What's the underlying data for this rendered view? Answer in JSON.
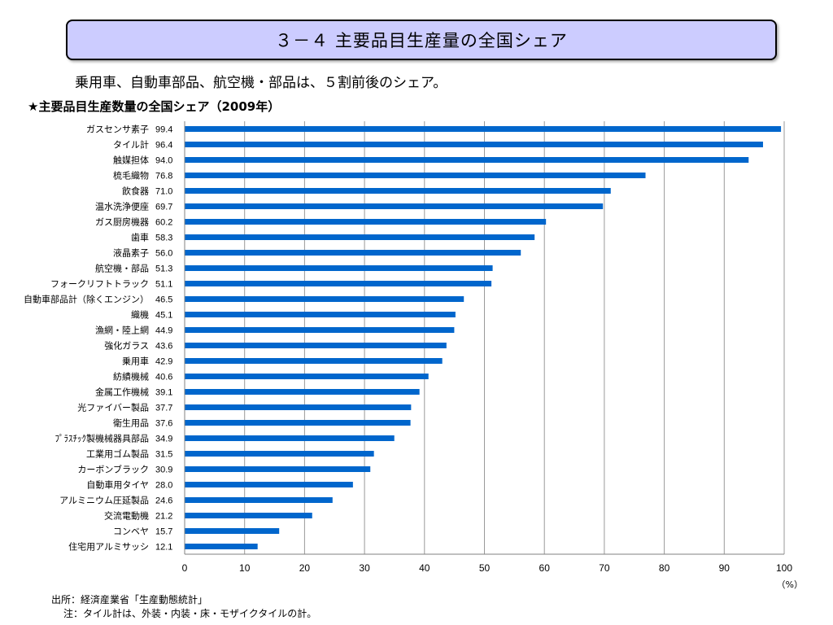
{
  "header": {
    "title": "３－４ 主要品目生産量の全国シェア"
  },
  "subtitle": "乗用車、自動車部品、航空機・部品は、５割前後のシェア。",
  "chart_data": {
    "type": "bar",
    "orientation": "horizontal",
    "title": "★主要品目生産数量の全国シェア（2009年）",
    "categories": [
      "ガスセンサ素子",
      "タイル計",
      "触媒担体",
      "梳毛織物",
      "飲食器",
      "温水洗浄便座",
      "ガス厨房機器",
      "歯車",
      "液晶素子",
      "航空機・部品",
      "フォークリフトトラック",
      "自動車部品計（除くエンジン）",
      "織機",
      "漁網・陸上網",
      "強化ガラス",
      "乗用車",
      "紡績機械",
      "金属工作機械",
      "光ファイバー製品",
      "衛生用品",
      "ﾌﾟﾗｽﾁｯｸ製機械器具部品",
      "工業用ゴム製品",
      "カーボンブラック",
      "自動車用タイヤ",
      "アルミニウム圧延製品",
      "交流電動機",
      "コンベヤ",
      "住宅用アルミサッシ"
    ],
    "values": [
      99.4,
      96.4,
      94.0,
      76.8,
      71.0,
      69.7,
      60.2,
      58.3,
      56.0,
      51.3,
      51.1,
      46.5,
      45.1,
      44.9,
      43.6,
      42.9,
      40.6,
      39.1,
      37.7,
      37.6,
      34.9,
      31.5,
      30.9,
      28.0,
      24.6,
      21.2,
      15.7,
      12.1
    ],
    "value_labels": [
      "99.4",
      "96.4",
      "94.0",
      "76.8",
      "71.0",
      "69.7",
      "60.2",
      "58.3",
      "56.0",
      "51.3",
      "51.1",
      "46.5",
      "45.1",
      "44.9",
      "43.6",
      "42.9",
      "40.6",
      "39.1",
      "37.7",
      "37.6",
      "34.9",
      "31.5",
      "30.9",
      "28.0",
      "24.6",
      "21.2",
      "15.7",
      "12.1"
    ],
    "xlim": [
      0,
      100
    ],
    "xticks": [
      0,
      10,
      20,
      30,
      40,
      50,
      60,
      70,
      80,
      90,
      100
    ],
    "unit_label": "（%）",
    "grid": true,
    "bar_color": "#0066cc"
  },
  "footer": {
    "source": "出所：経済産業省「生産動態統計」",
    "note": "注：タイル計は、外装・内装・床・モザイクタイルの計。"
  }
}
